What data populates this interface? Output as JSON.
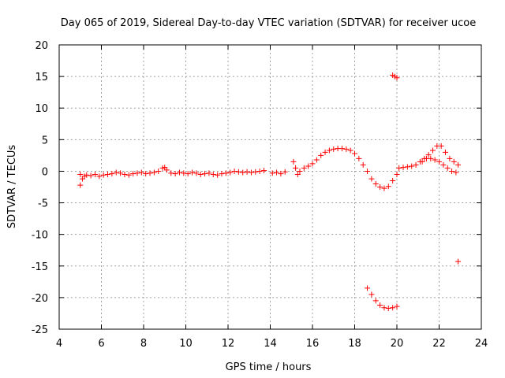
{
  "chart_data": {
    "type": "scatter",
    "title": "Day 065 of 2019, Sidereal Day-to-day VTEC variation (SDTVAR) for receiver ucoe",
    "xlabel": "GPS time / hours",
    "ylabel": "SDTVAR / TECUs",
    "xlim": [
      4,
      24
    ],
    "ylim": [
      -25,
      20
    ],
    "xticks": [
      4,
      6,
      8,
      10,
      12,
      14,
      16,
      18,
      20,
      22,
      24
    ],
    "yticks": [
      -25,
      -20,
      -15,
      -10,
      -5,
      0,
      5,
      10,
      15,
      20
    ],
    "grid": true,
    "marker": "+",
    "color": "#ff0000",
    "series": [
      {
        "name": "SDTVAR",
        "x": [
          5.0,
          5.1,
          5.2,
          5.3,
          5.5,
          5.7,
          5.9,
          6.1,
          6.3,
          6.5,
          6.7,
          6.9,
          7.1,
          7.3,
          7.5,
          7.7,
          7.9,
          8.1,
          8.3,
          8.5,
          8.7,
          8.9,
          9.0,
          9.1,
          9.3,
          9.5,
          9.7,
          9.9,
          10.1,
          10.3,
          10.5,
          10.7,
          10.9,
          11.1,
          11.3,
          11.5,
          11.7,
          11.9,
          12.1,
          12.3,
          12.5,
          12.7,
          12.9,
          13.1,
          13.3,
          13.5,
          13.7,
          14.1,
          14.3,
          14.5,
          14.7,
          15.1,
          15.2,
          15.3,
          15.4,
          15.6,
          15.8,
          16.0,
          16.2,
          16.4,
          16.6,
          16.8,
          17.0,
          17.2,
          17.4,
          17.6,
          17.8,
          18.0,
          18.2,
          18.4,
          18.6,
          18.8,
          19.0,
          19.2,
          19.4,
          19.6,
          19.8,
          20.0,
          20.1,
          20.3,
          20.5,
          20.7,
          20.9,
          21.1,
          21.3,
          21.5,
          21.7,
          21.9,
          22.1,
          22.3,
          22.5,
          22.7,
          22.9,
          21.2,
          21.4,
          21.6,
          21.8,
          22.0,
          22.2,
          22.4,
          22.6,
          22.8,
          18.6,
          18.8,
          19.0,
          19.2,
          19.4,
          19.6,
          19.8,
          20.0,
          19.8,
          19.9,
          20.0,
          5.0,
          22.9
        ],
        "y": [
          -0.5,
          -1.2,
          -0.8,
          -0.6,
          -0.7,
          -0.5,
          -0.8,
          -0.6,
          -0.5,
          -0.4,
          -0.2,
          -0.3,
          -0.5,
          -0.6,
          -0.4,
          -0.3,
          -0.2,
          -0.4,
          -0.3,
          -0.2,
          0.0,
          0.5,
          0.6,
          0.2,
          -0.3,
          -0.4,
          -0.2,
          -0.3,
          -0.4,
          -0.2,
          -0.3,
          -0.5,
          -0.4,
          -0.3,
          -0.5,
          -0.6,
          -0.4,
          -0.3,
          -0.2,
          0.0,
          -0.1,
          -0.2,
          -0.1,
          -0.2,
          -0.1,
          0.0,
          0.1,
          -0.3,
          -0.2,
          -0.4,
          -0.1,
          1.5,
          0.5,
          -0.5,
          0.0,
          0.5,
          0.8,
          1.2,
          1.8,
          2.5,
          3.0,
          3.3,
          3.5,
          3.6,
          3.6,
          3.5,
          3.3,
          2.8,
          2.0,
          1.0,
          0.0,
          -1.2,
          -2.0,
          -2.5,
          -2.7,
          -2.4,
          -1.5,
          -0.5,
          0.5,
          0.6,
          0.7,
          0.8,
          1.0,
          1.5,
          2.0,
          2.6,
          3.3,
          4.0,
          4.0,
          3.0,
          2.0,
          1.5,
          1.0,
          1.5,
          2.0,
          2.0,
          1.8,
          1.5,
          1.0,
          0.5,
          0.0,
          -0.2,
          -18.5,
          -19.5,
          -20.5,
          -21.2,
          -21.6,
          -21.7,
          -21.6,
          -21.4,
          15.2,
          15.0,
          14.8,
          -2.2,
          -14.3
        ]
      }
    ]
  }
}
